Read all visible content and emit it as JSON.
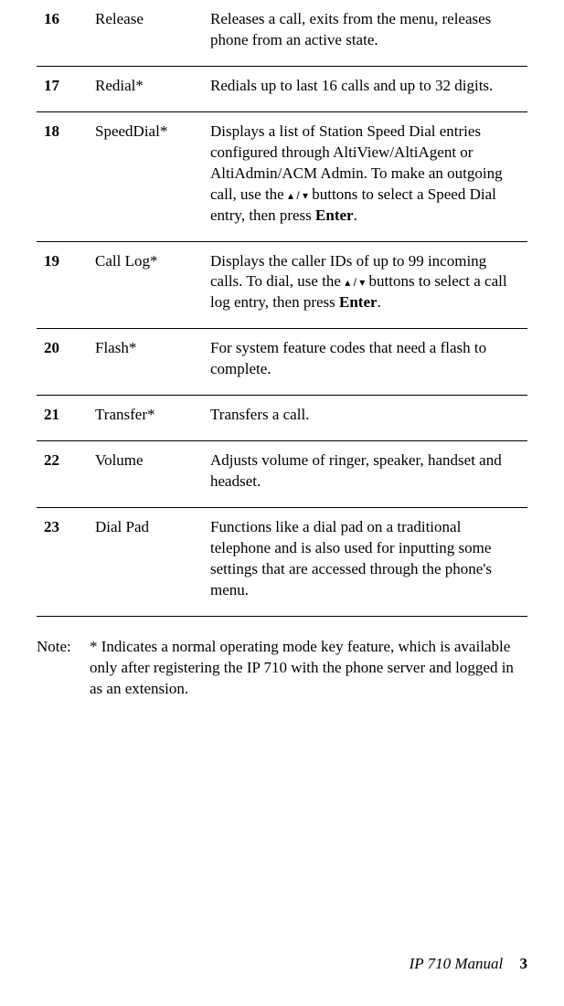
{
  "table": {
    "rows": [
      {
        "num": "16",
        "name": "Release",
        "desc_parts": [
          "Releases a call, exits from the menu, releases phone from an active state."
        ]
      },
      {
        "num": "17",
        "name": "Redial*",
        "desc_parts": [
          "Redials up to last 16 calls and up to 32 digits."
        ]
      },
      {
        "num": "18",
        "name": "SpeedDial*",
        "desc_parts": [
          "Displays a list of Station Speed Dial entries configured through AltiView/AltiAgent or AltiAdmin/ACM Admin. To make an outgoing call, use the ",
          {
            "arrows": true
          },
          "  buttons to select a Speed Dial entry, then press ",
          {
            "bold": "Enter"
          },
          "."
        ]
      },
      {
        "num": "19",
        "name": "Call Log*",
        "desc_parts": [
          "Displays the caller IDs of up to 99 incoming calls. To dial, use the ",
          {
            "arrows": true
          },
          " buttons to select a call log entry, then press ",
          {
            "bold": "Enter"
          },
          "."
        ]
      },
      {
        "num": "20",
        "name": "Flash*",
        "desc_parts": [
          "For system feature codes that need a flash to complete."
        ]
      },
      {
        "num": "21",
        "name": "Transfer*",
        "desc_parts": [
          "Transfers a call."
        ]
      },
      {
        "num": "22",
        "name": "Volume",
        "desc_parts": [
          "Adjusts volume of ringer, speaker, handset and headset."
        ]
      },
      {
        "num": "23",
        "name": "Dial Pad",
        "desc_parts": [
          "Functions like a dial pad on a traditional telephone and is also used for inputting some settings that are accessed through the phone's menu."
        ]
      }
    ]
  },
  "arrows_glyph": "▴ / ▾",
  "note": {
    "label": "Note:",
    "text": "* Indicates a normal operating mode key feature, which is available only after registering the IP 710 with the phone server and logged in as an extension."
  },
  "footer": {
    "title": "IP 710 Manual",
    "page": "3"
  }
}
